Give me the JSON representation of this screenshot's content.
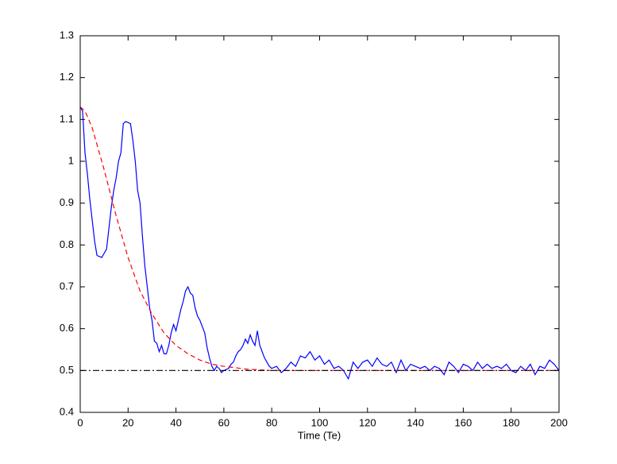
{
  "chart_data": {
    "type": "line",
    "xlabel": "Time (Te)",
    "xlim": [
      0,
      200
    ],
    "ylim": [
      0.4,
      1.3
    ],
    "xticks": [
      0,
      20,
      40,
      60,
      80,
      100,
      120,
      140,
      160,
      180,
      200
    ],
    "yticks": [
      0.4,
      0.5,
      0.6,
      0.7,
      0.8,
      0.9,
      1,
      1.1,
      1.2,
      1.3
    ],
    "series": [
      {
        "color": "#0000ff",
        "dash": "solid",
        "x": [
          0,
          1,
          2,
          3,
          4,
          5,
          6,
          7,
          9,
          11,
          12,
          13,
          14,
          15,
          16,
          17,
          18,
          19,
          21,
          22,
          23,
          24,
          25,
          26,
          27,
          28,
          29,
          30,
          31,
          32,
          33,
          34,
          35,
          36,
          37,
          38,
          39,
          40,
          41,
          42,
          43,
          44,
          45,
          46,
          47,
          48,
          49,
          50,
          51,
          52,
          53,
          54,
          55,
          56,
          57,
          58,
          59,
          60,
          62,
          63,
          64,
          65,
          66,
          67,
          68,
          69,
          70,
          71,
          72,
          73,
          74,
          75,
          76,
          77,
          78,
          79,
          80,
          82,
          84,
          86,
          88,
          90,
          92,
          94,
          96,
          98,
          100,
          102,
          104,
          106,
          108,
          110,
          112,
          114,
          116,
          118,
          120,
          122,
          124,
          126,
          128,
          130,
          132,
          134,
          136,
          138,
          140,
          142,
          144,
          146,
          148,
          150,
          152,
          154,
          156,
          158,
          160,
          162,
          164,
          166,
          168,
          170,
          172,
          174,
          176,
          178,
          180,
          182,
          184,
          186,
          188,
          190,
          192,
          194,
          196,
          198,
          200
        ],
        "values": [
          1.13,
          1.12,
          1.02,
          0.97,
          0.91,
          0.86,
          0.81,
          0.775,
          0.77,
          0.79,
          0.84,
          0.89,
          0.93,
          0.96,
          1.0,
          1.02,
          1.09,
          1.095,
          1.09,
          1.05,
          1.0,
          0.93,
          0.9,
          0.82,
          0.75,
          0.7,
          0.65,
          0.62,
          0.57,
          0.565,
          0.545,
          0.56,
          0.54,
          0.54,
          0.56,
          0.59,
          0.61,
          0.595,
          0.62,
          0.645,
          0.665,
          0.69,
          0.7,
          0.685,
          0.68,
          0.65,
          0.63,
          0.62,
          0.605,
          0.59,
          0.555,
          0.53,
          0.51,
          0.5,
          0.51,
          0.505,
          0.495,
          0.5,
          0.505,
          0.515,
          0.52,
          0.535,
          0.545,
          0.55,
          0.56,
          0.575,
          0.565,
          0.585,
          0.57,
          0.56,
          0.595,
          0.56,
          0.545,
          0.53,
          0.52,
          0.51,
          0.505,
          0.51,
          0.495,
          0.505,
          0.52,
          0.51,
          0.535,
          0.53,
          0.545,
          0.525,
          0.535,
          0.515,
          0.525,
          0.505,
          0.51,
          0.5,
          0.48,
          0.52,
          0.505,
          0.52,
          0.525,
          0.51,
          0.53,
          0.515,
          0.51,
          0.52,
          0.495,
          0.525,
          0.5,
          0.515,
          0.51,
          0.505,
          0.51,
          0.5,
          0.51,
          0.505,
          0.49,
          0.52,
          0.51,
          0.495,
          0.515,
          0.51,
          0.5,
          0.52,
          0.505,
          0.515,
          0.505,
          0.51,
          0.505,
          0.515,
          0.5,
          0.495,
          0.51,
          0.5,
          0.515,
          0.49,
          0.51,
          0.505,
          0.525,
          0.515,
          0.5
        ]
      },
      {
        "color": "#ff0000",
        "dash": "dashed",
        "x": [
          0,
          2,
          5,
          10,
          15,
          20,
          25,
          30,
          35,
          40,
          45,
          50,
          55,
          60,
          70,
          80,
          200
        ],
        "values": [
          1.13,
          1.12,
          1.08,
          0.98,
          0.87,
          0.77,
          0.69,
          0.635,
          0.59,
          0.56,
          0.54,
          0.525,
          0.515,
          0.51,
          0.503,
          0.5,
          0.5
        ]
      },
      {
        "color": "#000000",
        "dash": "dashdot",
        "x": [
          0,
          200
        ],
        "values": [
          0.5,
          0.5
        ]
      }
    ]
  }
}
